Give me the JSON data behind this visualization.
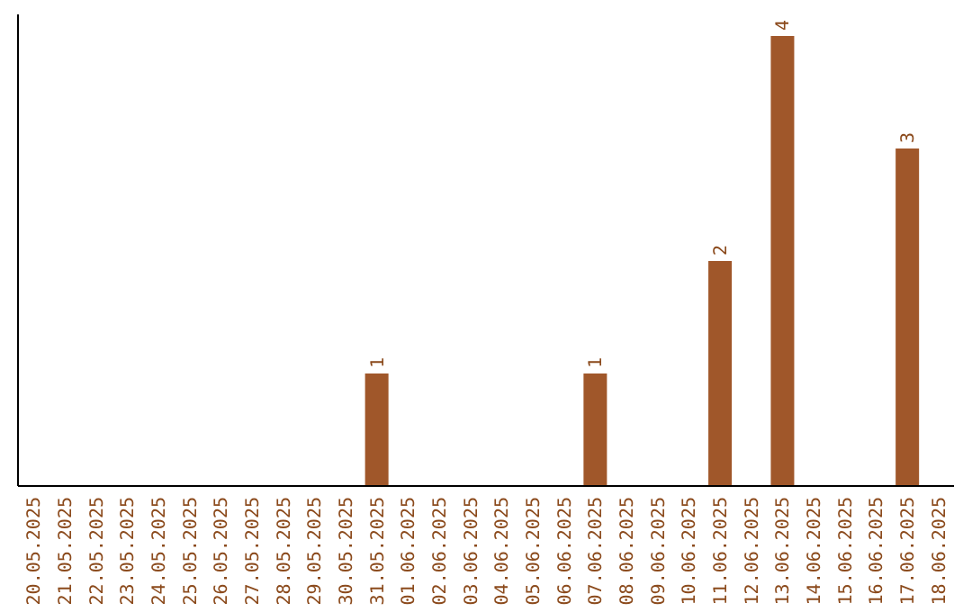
{
  "chart_data": {
    "type": "bar",
    "categories": [
      "20.05.2025",
      "21.05.2025",
      "22.05.2025",
      "23.05.2025",
      "24.05.2025",
      "25.05.2025",
      "26.05.2025",
      "27.05.2025",
      "28.05.2025",
      "29.05.2025",
      "30.05.2025",
      "31.05.2025",
      "01.06.2025",
      "02.06.2025",
      "03.06.2025",
      "04.06.2025",
      "05.06.2025",
      "06.06.2025",
      "07.06.2025",
      "08.06.2025",
      "09.06.2025",
      "10.06.2025",
      "11.06.2025",
      "12.06.2025",
      "13.06.2025",
      "14.06.2025",
      "15.06.2025",
      "16.06.2025",
      "17.06.2025",
      "18.06.2025"
    ],
    "values": [
      0,
      0,
      0,
      0,
      0,
      0,
      0,
      0,
      0,
      0,
      0,
      1,
      0,
      0,
      0,
      0,
      0,
      0,
      1,
      0,
      0,
      0,
      2,
      0,
      4,
      0,
      0,
      0,
      3,
      0
    ],
    "value_labels": [
      null,
      null,
      null,
      null,
      null,
      null,
      null,
      null,
      null,
      null,
      null,
      "1",
      null,
      null,
      null,
      null,
      null,
      null,
      "1",
      null,
      null,
      null,
      "2",
      null,
      "4",
      null,
      null,
      null,
      "3",
      null
    ],
    "color": "#a0572a",
    "relative": false
  }
}
